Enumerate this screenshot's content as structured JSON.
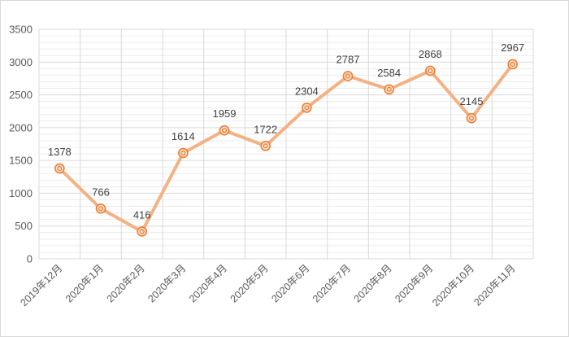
{
  "chart_data": {
    "type": "line",
    "categories": [
      "2019年12月",
      "2020年1月",
      "2020年2月",
      "2020年3月",
      "2020年4月",
      "2020年5月",
      "2020年6月",
      "2020年7月",
      "2020年8月",
      "2020年9月",
      "2020年10月",
      "2020年11月"
    ],
    "series": [
      {
        "values": [
          1378,
          766,
          416,
          1614,
          1959,
          1722,
          2304,
          2787,
          2584,
          2868,
          2145,
          2967
        ]
      }
    ],
    "data_labels": [
      "1378",
      "766",
      "416",
      "1614",
      "1959",
      "1722",
      "2304",
      "2787",
      "2584",
      "2868",
      "2145",
      "2967"
    ],
    "y_ticks": [
      "0",
      "500",
      "1000",
      "1500",
      "2000",
      "2500",
      "3000",
      "3500"
    ],
    "ylim": [
      0,
      3500
    ],
    "grid": {
      "major": true,
      "minor": true,
      "vertical": true
    },
    "legend": "none",
    "colors": {
      "line": "#f4b183",
      "marker": "#ed7d31",
      "grid_major": "#d9d9d9",
      "grid_minor": "#ececec"
    }
  }
}
